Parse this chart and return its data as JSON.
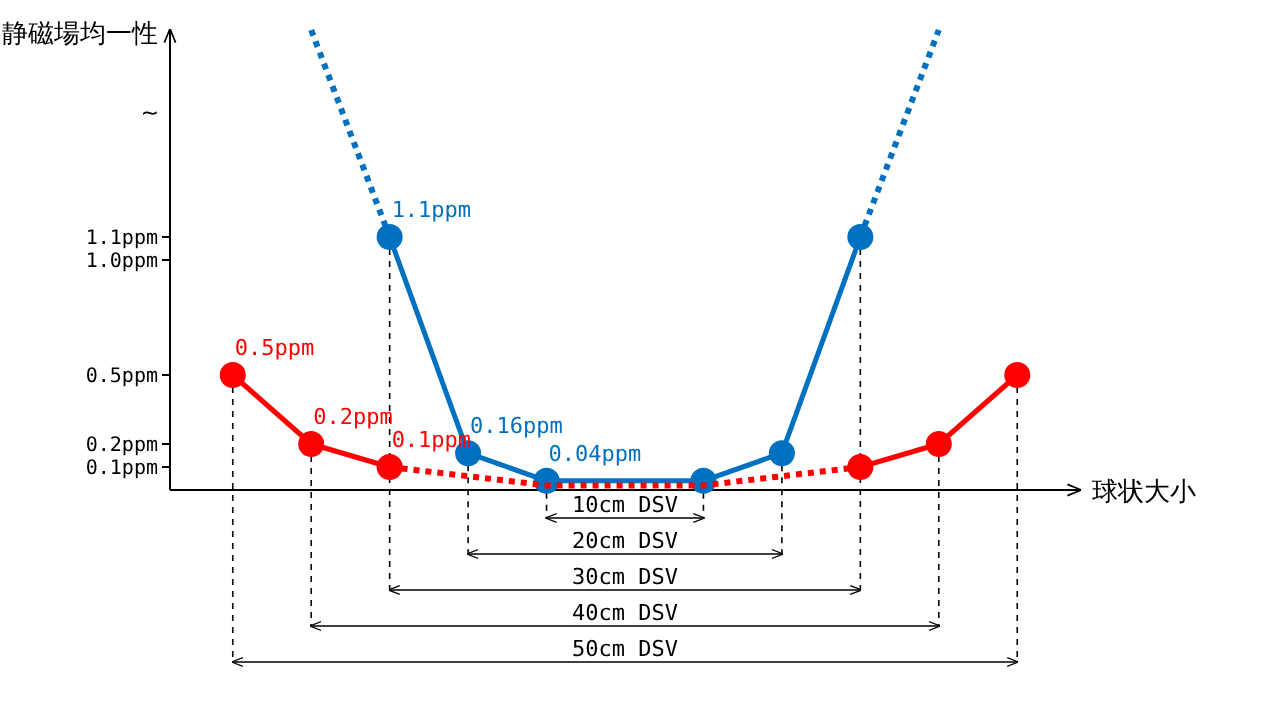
{
  "chart_data": {
    "type": "line",
    "ylabel": "静磁場均一性",
    "xlabel": "球状大小",
    "categories": [
      null,
      null,
      null,
      null,
      null,
      null,
      null,
      null,
      null,
      null,
      null
    ],
    "ylim": [
      0,
      2.0
    ],
    "yticks": [
      {
        "value": 0.1,
        "label": "0.1ppm"
      },
      {
        "value": 0.2,
        "label": "0.2ppm"
      },
      {
        "value": 0.5,
        "label": "0.5ppm"
      },
      {
        "value": 1.0,
        "label": "1.0ppm"
      },
      {
        "value": 1.1,
        "label": "1.1ppm"
      }
    ],
    "tick_labels": "y",
    "grid": false,
    "series": [
      {
        "color": "#0070c0",
        "values": [
          null,
          null,
          1.1,
          0.16,
          0.04,
          null,
          null,
          null,
          null,
          null,
          null
        ],
        "marker": "circle",
        "line_style": "solid",
        "value_labels": [
          null,
          null,
          "1.1ppm",
          "0.16ppm",
          "0.04ppm",
          null,
          null,
          null,
          null,
          null,
          null
        ]
      },
      {
        "color": "#0070c0",
        "values": [
          null,
          null,
          null,
          null,
          0.04,
          0.04,
          0.04,
          null,
          null,
          null,
          null
        ],
        "marker": "none",
        "line_style": "solid"
      },
      {
        "color": "#0070c0",
        "values": [
          null,
          null,
          null,
          null,
          null,
          null,
          0.04,
          0.16,
          1.1,
          null,
          null
        ],
        "marker": "circle",
        "line_style": "solid"
      },
      {
        "color": "#0070c0",
        "values": [
          null,
          2.0,
          1.1,
          null,
          null,
          null,
          null,
          null,
          null,
          null,
          null
        ],
        "marker": "none",
        "line_style": "dotted"
      },
      {
        "color": "#0070c0",
        "values": [
          null,
          null,
          null,
          null,
          null,
          null,
          null,
          null,
          1.1,
          2.0,
          null
        ],
        "marker": "none",
        "line_style": "dotted"
      },
      {
        "color": "#ff0000",
        "values": [
          0.5,
          0.2,
          0.1,
          null,
          null,
          null,
          null,
          null,
          null,
          null,
          null
        ],
        "marker": "circle",
        "line_style": "solid",
        "value_labels": [
          "0.5ppm",
          "0.2ppm",
          "0.1ppm",
          null,
          null,
          null,
          null,
          null,
          null,
          null,
          null
        ]
      },
      {
        "color": "#ff0000",
        "values": [
          null,
          null,
          0.1,
          0.06,
          0.02,
          0.02,
          0.02,
          0.06,
          0.1,
          null,
          null
        ],
        "marker": "none",
        "line_style": "dotted"
      },
      {
        "color": "#ff0000",
        "values": [
          null,
          null,
          null,
          null,
          null,
          null,
          null,
          null,
          0.1,
          0.2,
          0.5
        ],
        "marker": "circle",
        "line_style": "solid"
      }
    ],
    "annotations": [
      "10cm DSV",
      "20cm DSV",
      "30cm DSV",
      "40cm DSV",
      "50cm DSV",
      "~"
    ]
  }
}
